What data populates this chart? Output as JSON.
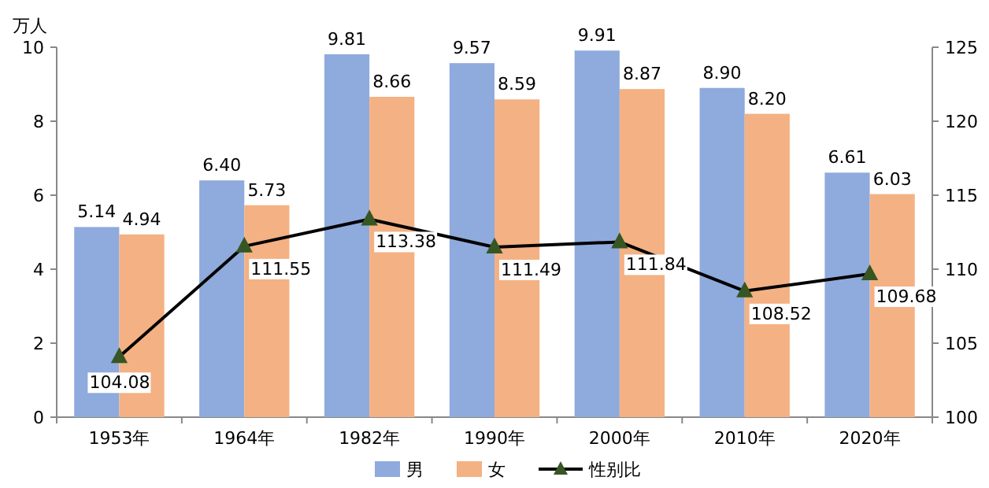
{
  "chart_data": {
    "type": "bar",
    "ylabel": "万人",
    "categories": [
      "1953年",
      "1964年",
      "1982年",
      "1990年",
      "2000年",
      "2010年",
      "2020年"
    ],
    "series": [
      {
        "name": "男",
        "color": "#8faadc",
        "values": [
          5.14,
          6.4,
          9.81,
          9.57,
          9.91,
          8.9,
          6.61
        ],
        "value_labels": [
          "5.14",
          "6.40",
          "9.81",
          "9.57",
          "9.91",
          "8.90",
          "6.61"
        ]
      },
      {
        "name": "女",
        "color": "#f4b183",
        "values": [
          4.94,
          5.73,
          8.66,
          8.59,
          8.87,
          8.2,
          6.03
        ],
        "value_labels": [
          "4.94",
          "5.73",
          "8.66",
          "8.59",
          "8.87",
          "8.20",
          "6.03"
        ]
      },
      {
        "name": "性别比",
        "type": "line",
        "axis": "y2",
        "color": "#000000",
        "marker": "triangle",
        "values": [
          104.08,
          111.55,
          113.38,
          111.49,
          111.84,
          108.52,
          109.68
        ],
        "value_labels": [
          "104.08",
          "111.55",
          "113.38",
          "111.49",
          "111.84",
          "108.52",
          "109.68"
        ]
      }
    ],
    "ylim": [
      0,
      10
    ],
    "yticks": [
      0,
      2,
      4,
      6,
      8,
      10
    ],
    "y2lim": [
      100,
      125
    ],
    "y2ticks": [
      100,
      105,
      110,
      115,
      120,
      125
    ],
    "legend": "bottom",
    "grid": false
  }
}
